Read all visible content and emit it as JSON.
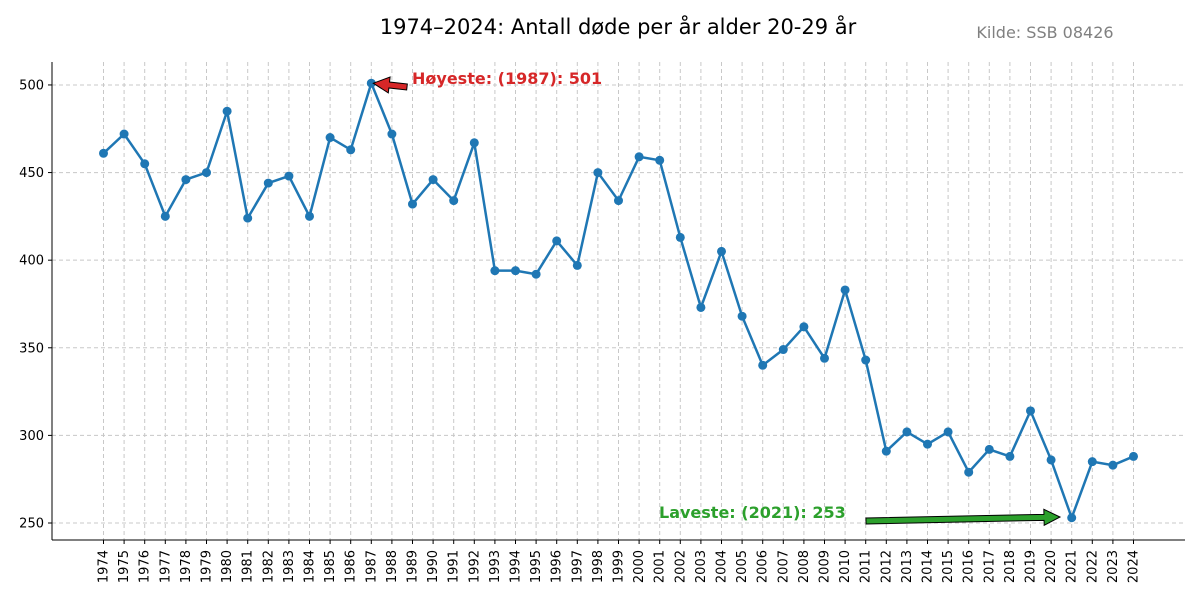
{
  "chart_data": {
    "type": "line",
    "title": "1974–2024: Antall døde per år alder 20-29 år",
    "source": "Kilde: SSB 08426",
    "xlabel": "",
    "ylabel": "",
    "x": [
      1974,
      1975,
      1976,
      1977,
      1978,
      1979,
      1980,
      1981,
      1982,
      1983,
      1984,
      1985,
      1986,
      1987,
      1988,
      1989,
      1990,
      1991,
      1992,
      1993,
      1994,
      1995,
      1996,
      1997,
      1998,
      1999,
      2000,
      2001,
      2002,
      2003,
      2004,
      2005,
      2006,
      2007,
      2008,
      2009,
      2010,
      2011,
      2012,
      2013,
      2014,
      2015,
      2016,
      2017,
      2018,
      2019,
      2020,
      2021,
      2022,
      2023,
      2024
    ],
    "values": [
      461,
      472,
      455,
      425,
      446,
      450,
      485,
      424,
      444,
      448,
      425,
      470,
      463,
      501,
      472,
      432,
      446,
      434,
      467,
      394,
      394,
      392,
      411,
      397,
      450,
      434,
      459,
      457,
      413,
      373,
      405,
      368,
      340,
      349,
      362,
      344,
      383,
      343,
      291,
      302,
      295,
      302,
      279,
      292,
      288,
      314,
      286,
      253,
      285,
      283,
      288
    ],
    "yticks": [
      250,
      300,
      350,
      400,
      450,
      500
    ],
    "ylim": [
      240.3,
      513.1
    ],
    "xlim": [
      1971.5,
      2026.5
    ],
    "grid": true,
    "line_color": "#1f77b4",
    "annotations": [
      {
        "text": "Høyeste: (1987): 501",
        "x": 1987,
        "y": 501,
        "color": "#d62728"
      },
      {
        "text": "Laveste: (2021): 253",
        "x": 2021,
        "y": 253,
        "color": "#2ca02c"
      }
    ]
  }
}
